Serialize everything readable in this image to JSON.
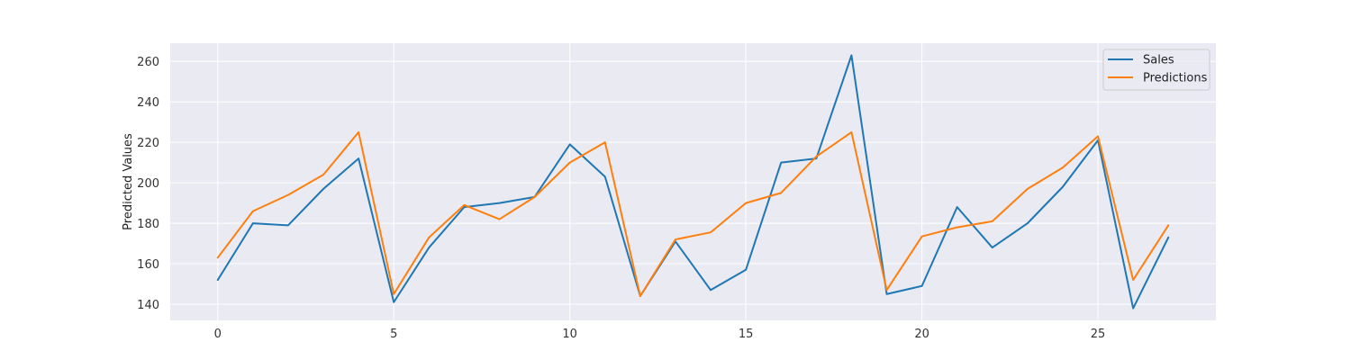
{
  "chart_data": {
    "type": "line",
    "title": "",
    "xlabel": "",
    "ylabel": "Predicted Values",
    "x": [
      0,
      1,
      2,
      3,
      4,
      5,
      6,
      7,
      8,
      9,
      10,
      11,
      12,
      13,
      14,
      15,
      16,
      17,
      18,
      19,
      20,
      21,
      22,
      23,
      24,
      25,
      26,
      27
    ],
    "xlim": [
      -1.35,
      28.35
    ],
    "ylim": [
      132,
      269
    ],
    "xticks": [
      0,
      5,
      10,
      15,
      20,
      25
    ],
    "yticks": [
      140,
      160,
      180,
      200,
      220,
      240,
      260
    ],
    "grid": true,
    "legend_position": "top-right",
    "series": [
      {
        "name": "Sales",
        "color": "#1f77b4",
        "values": [
          152,
          180,
          179,
          197,
          212,
          141,
          168,
          188,
          190,
          193,
          219,
          203,
          144,
          171,
          147,
          157,
          210,
          212,
          263,
          145,
          149,
          188,
          168,
          180,
          198,
          221,
          138,
          173
        ]
      },
      {
        "name": "Predictions",
        "color": "#ff7f0e",
        "values": [
          163,
          186,
          194,
          204,
          225,
          145,
          173,
          189,
          182,
          193,
          210,
          220,
          144,
          172,
          175.5,
          190,
          195,
          213,
          225,
          147,
          173.5,
          178,
          181,
          197,
          207.5,
          223,
          152,
          179
        ]
      }
    ]
  }
}
